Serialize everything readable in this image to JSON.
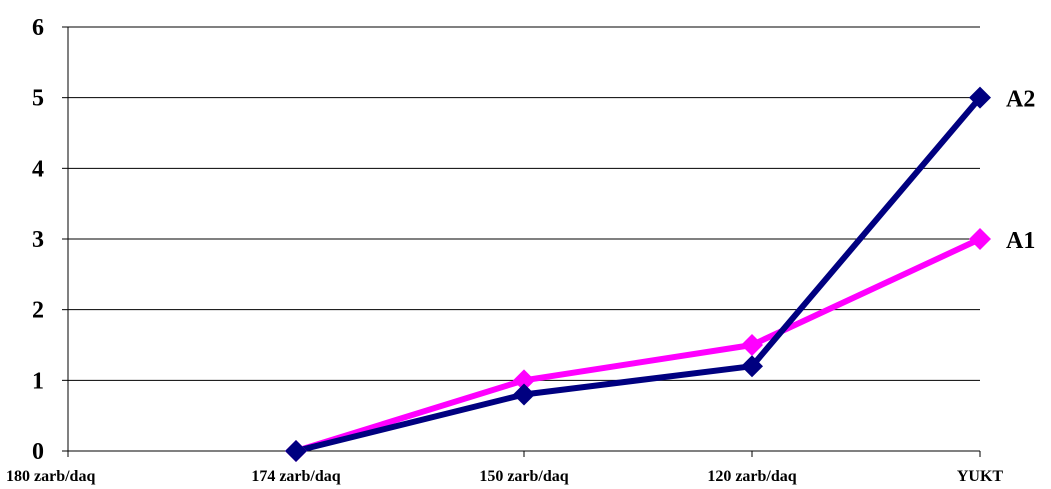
{
  "chart_data": {
    "type": "line",
    "title": "",
    "xlabel": "",
    "ylabel": "",
    "categories": [
      "180 zarb/daq",
      "174 zarb/daq",
      "150 zarb/daq",
      "120 zarb/daq",
      "YUKT"
    ],
    "ylim": [
      0,
      6
    ],
    "yticks": [
      0,
      1,
      2,
      3,
      4,
      5,
      6
    ],
    "grid": true,
    "series": [
      {
        "name": "A1",
        "color": "#ff00ff",
        "values": [
          null,
          0,
          1.0,
          1.5,
          3.0
        ]
      },
      {
        "name": "A2",
        "color": "#000080",
        "values": [
          null,
          0,
          0.8,
          1.2,
          5.0
        ]
      }
    ]
  }
}
